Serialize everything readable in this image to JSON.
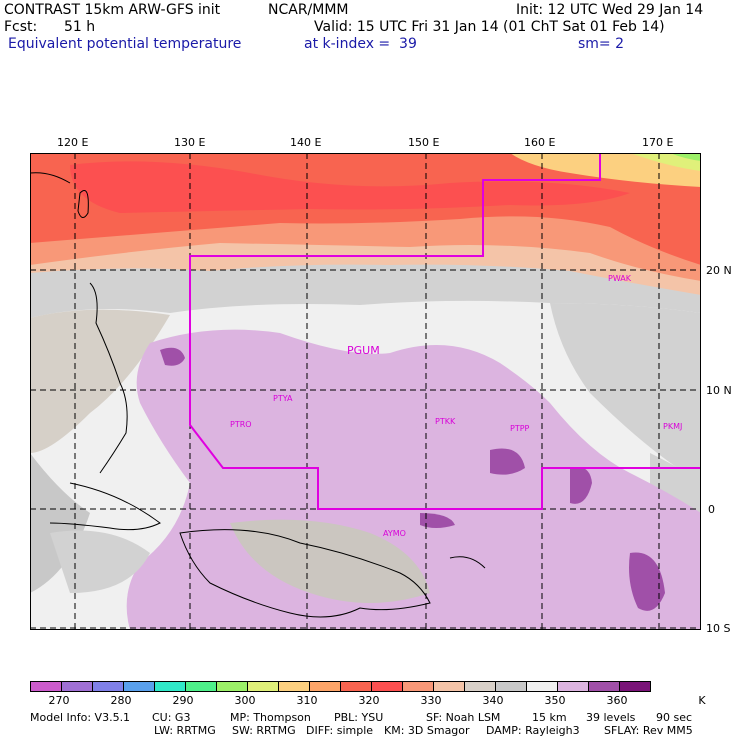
{
  "header": {
    "title": "CONTRAST 15km ARW-GFS init",
    "org": "NCAR/MMM",
    "init": "Init: 12 UTC Wed 29 Jan 14",
    "fcst_label": "Fcst:",
    "fcst_value": "51 h",
    "valid": "Valid: 15 UTC Fri 31 Jan 14 (01 ChT Sat 01 Feb 14)",
    "field": "Equivalent potential temperature",
    "level": "at k-index =  39",
    "smooth": "sm= 2"
  },
  "axes": {
    "lon_labels": [
      "120 E",
      "130 E",
      "140 E",
      "150 E",
      "160 E",
      "170 E"
    ],
    "lat_labels": [
      "20 N",
      "10 N",
      "0",
      "10 S"
    ]
  },
  "stations": [
    "PGUM",
    "PTYA",
    "PTRO",
    "PTKK",
    "PTPP",
    "PKMJ",
    "PWAK",
    "AYMO"
  ],
  "colorbar": {
    "colors": [
      "#cc5ccc",
      "#a070d4",
      "#8080e8",
      "#5aa0ec",
      "#30e8c8",
      "#4ef08a",
      "#9cf068",
      "#e0f07a",
      "#fcd080",
      "#fca468",
      "#f86450",
      "#fc5050",
      "#f89878",
      "#f4c4a8",
      "#d8d0c8",
      "#c8c8c8",
      "#f0f0f0",
      "#dcb4e0",
      "#a050a8",
      "#7a1478"
    ],
    "labels": [
      "270",
      "280",
      "290",
      "300",
      "310",
      "320",
      "330",
      "340",
      "350",
      "360"
    ],
    "unit": "K"
  },
  "footer": {
    "line1": [
      "Model Info: V3.5.1",
      "CU: G3",
      "MP: Thompson",
      "PBL: YSU",
      "SF: Noah LSM",
      "15 km",
      "39 levels",
      "90 sec"
    ],
    "line2": [
      "LW: RRTMG",
      "SW: RRTMG",
      "DIFF: simple",
      "KM: 3D Smagor",
      "DAMP: Rayleigh3",
      "SFLAY: Rev MM5"
    ]
  }
}
